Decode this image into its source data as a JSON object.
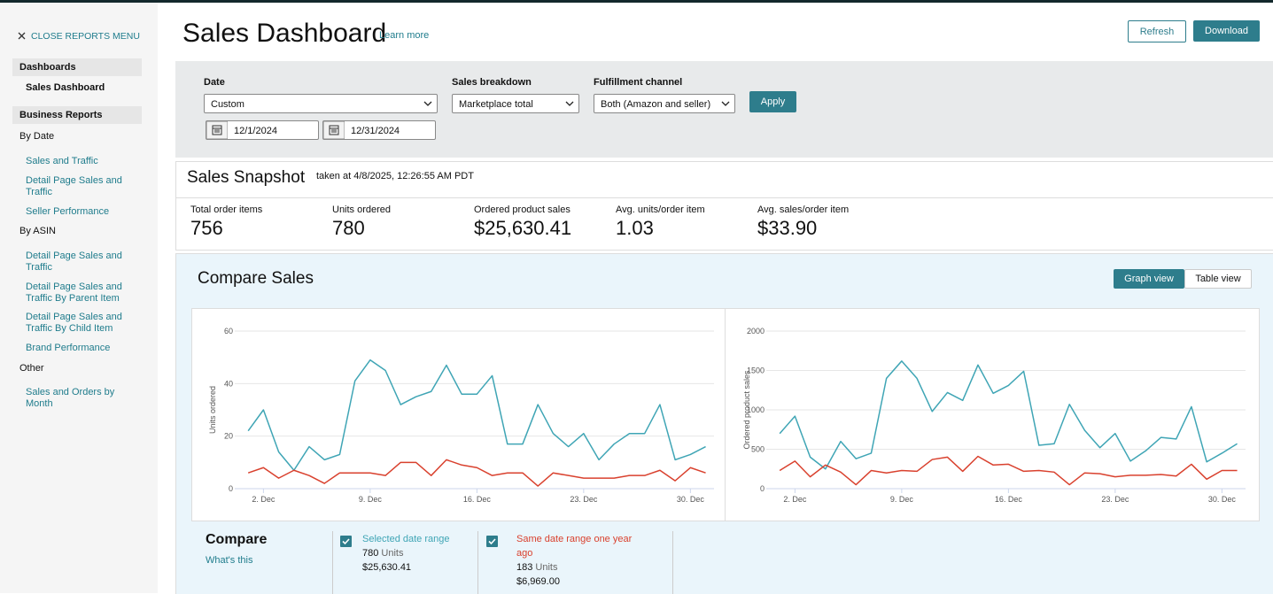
{
  "sidebar": {
    "close": "CLOSE REPORTS MENU",
    "dashboards": {
      "title": "Dashboards",
      "items": [
        "Sales Dashboard"
      ]
    },
    "business_reports": {
      "title": "Business Reports",
      "groups": [
        {
          "label": "By Date",
          "links": [
            "Sales and Traffic",
            "Detail Page Sales and Traffic",
            "Seller Performance"
          ]
        },
        {
          "label": "By ASIN",
          "links": [
            "Detail Page Sales and Traffic",
            "Detail Page Sales and Traffic By Parent Item",
            "Detail Page Sales and Traffic By Child Item",
            "Brand Performance"
          ]
        },
        {
          "label": "Other",
          "links": [
            "Sales and Orders by Month"
          ]
        }
      ]
    }
  },
  "header": {
    "title": "Sales Dashboard",
    "learn_more": "Learn more",
    "buttons": [
      "Refresh",
      "Download"
    ]
  },
  "filters": {
    "date": {
      "label": "Date",
      "value": "Custom",
      "start": "12/1/2024",
      "end": "12/31/2024"
    },
    "breakdown": {
      "label": "Sales breakdown",
      "value": "Marketplace total"
    },
    "channel": {
      "label": "Fulfillment channel",
      "value": "Both (Amazon and seller)"
    },
    "apply": "Apply"
  },
  "snapshot": {
    "title": "Sales Snapshot",
    "timestamp": "taken at 4/8/2025, 12:26:55 AM PDT",
    "metrics": [
      {
        "label": "Total order items",
        "value": "756"
      },
      {
        "label": "Units ordered",
        "value": "780"
      },
      {
        "label": "Ordered product sales",
        "value": "$25,630.41"
      },
      {
        "label": "Avg. units/order item",
        "value": "1.03"
      },
      {
        "label": "Avg. sales/order item",
        "value": "$33.90"
      }
    ]
  },
  "compare": {
    "title": "Compare Sales",
    "views": [
      "Graph view",
      "Table view"
    ],
    "legend": {
      "title": "Compare",
      "help": "What's this",
      "items": [
        {
          "units": "780",
          "unit_label": "Units",
          "sales": "$25,630.41"
        },
        {
          "units": "183",
          "unit_label": "Units",
          "sales": "$6,969.00"
        }
      ]
    }
  },
  "chart_data": [
    {
      "type": "line",
      "ylabel": "Units ordered",
      "x": [
        1,
        2,
        3,
        4,
        5,
        6,
        7,
        8,
        9,
        10,
        11,
        12,
        13,
        14,
        15,
        16,
        17,
        18,
        19,
        20,
        21,
        22,
        23,
        24,
        25,
        26,
        27,
        28,
        29,
        30,
        31
      ],
      "xlim": [
        0.7,
        31.2
      ],
      "xticks": [
        {
          "value": 2,
          "label": "2. Dec"
        },
        {
          "value": 9,
          "label": "9. Dec"
        },
        {
          "value": 16,
          "label": "16. Dec"
        },
        {
          "value": 23,
          "label": "23. Dec"
        },
        {
          "value": 30,
          "label": "30. Dec"
        }
      ],
      "ylim": [
        0,
        60
      ],
      "yticks": [
        0,
        20,
        40,
        60
      ],
      "grid": true,
      "series": [
        {
          "name": "Selected date range",
          "color": "#3fa5b5",
          "values": [
            22,
            30,
            14,
            7,
            16,
            11,
            13,
            41,
            49,
            45,
            32,
            35,
            37,
            47,
            36,
            36,
            43,
            17,
            17,
            32,
            21,
            16,
            21,
            11,
            17,
            21,
            21,
            32,
            11,
            13,
            16
          ]
        },
        {
          "name": "Same date range one year ago",
          "color": "#d9412e",
          "values": [
            6,
            8,
            4,
            7,
            5,
            2,
            6,
            6,
            6,
            5,
            10,
            10,
            5,
            11,
            9,
            8,
            5,
            6,
            6,
            1,
            6,
            5,
            4,
            4,
            4,
            5,
            5,
            7,
            3,
            8,
            6
          ]
        }
      ]
    },
    {
      "type": "line",
      "ylabel": "Ordered product sales",
      "x": [
        1,
        2,
        3,
        4,
        5,
        6,
        7,
        8,
        9,
        10,
        11,
        12,
        13,
        14,
        15,
        16,
        17,
        18,
        19,
        20,
        21,
        22,
        23,
        24,
        25,
        26,
        27,
        28,
        29,
        30,
        31
      ],
      "xlim": [
        0.7,
        31.2
      ],
      "xticks": [
        {
          "value": 2,
          "label": "2. Dec"
        },
        {
          "value": 9,
          "label": "9. Dec"
        },
        {
          "value": 16,
          "label": "16. Dec"
        },
        {
          "value": 23,
          "label": "23. Dec"
        },
        {
          "value": 30,
          "label": "30. Dec"
        }
      ],
      "ylim": [
        0,
        2000
      ],
      "yticks": [
        0,
        500,
        1000,
        1500,
        2000
      ],
      "grid": true,
      "series": [
        {
          "color": "#3fa5b5",
          "values": [
            700,
            920,
            400,
            250,
            600,
            380,
            450,
            1400,
            1620,
            1400,
            980,
            1220,
            1120,
            1570,
            1210,
            1310,
            1490,
            550,
            570,
            1070,
            740,
            520,
            700,
            350,
            480,
            650,
            630,
            1040,
            340,
            450,
            570
          ]
        },
        {
          "color": "#d9412e",
          "values": [
            230,
            350,
            150,
            300,
            210,
            50,
            230,
            200,
            230,
            220,
            370,
            400,
            220,
            410,
            300,
            310,
            220,
            230,
            210,
            50,
            200,
            190,
            150,
            170,
            170,
            180,
            160,
            310,
            120,
            230,
            230
          ]
        }
      ]
    }
  ]
}
